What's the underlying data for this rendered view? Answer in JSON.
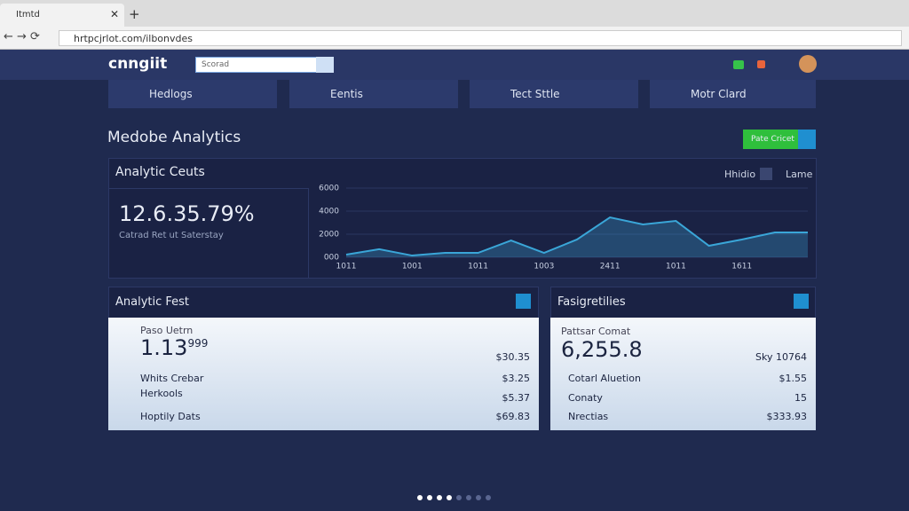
{
  "browser": {
    "tab_title": "Itmtd",
    "url": "hrtpcjrlot.com/ilbonvdes"
  },
  "header": {
    "logo": "cnngiit",
    "search_placeholder": "Scorad"
  },
  "nav": [
    "Hedlogs",
    "Eentis",
    "Tect Sttle",
    "Motr Clard"
  ],
  "page_title": "Medobe Analytics",
  "action_button": "Pate Cricet",
  "analytics_card": {
    "title": "Analytic Ceuts",
    "legend": [
      "Hhidio",
      "Lame"
    ],
    "stat": "12.6.35.79%",
    "stat_caption": "Catrad Ret ut Saterstay"
  },
  "chart_data": {
    "type": "area",
    "color": "#3aa6d8",
    "categories": [
      "1011",
      null,
      "1001",
      null,
      "1011",
      null,
      "1003",
      null,
      "2411",
      null,
      "1011",
      null,
      "1611",
      null,
      null
    ],
    "values": [
      230,
      700,
      150,
      380,
      380,
      1460,
      380,
      1540,
      3460,
      2850,
      3150,
      1000,
      1540,
      2150,
      2150
    ],
    "ylim": [
      0,
      6000
    ],
    "yticks": [
      {
        "value": 0,
        "label": "000"
      },
      2000,
      4000,
      6000
    ]
  },
  "left_card": {
    "title": "Analytic Fest",
    "label": "Paso Uetrn",
    "stat": "1.13",
    "stat_sup": "999",
    "stat_value": "$30.35",
    "rows": [
      [
        "Whits Crebar",
        "$3.25"
      ],
      [
        "Herkools",
        "$5.37"
      ],
      [
        "Hoptily Dats",
        "$69.83"
      ]
    ]
  },
  "right_card": {
    "title": "Fasigretilies",
    "label": "Pattsar Comat",
    "stat": "6,255.8",
    "stat_value": "Sky 10764",
    "rows": [
      [
        "Cotarl Aluetion",
        "$1.55"
      ],
      [
        "Conaty",
        "15"
      ],
      [
        "Nrectias",
        "$333.93"
      ]
    ]
  }
}
